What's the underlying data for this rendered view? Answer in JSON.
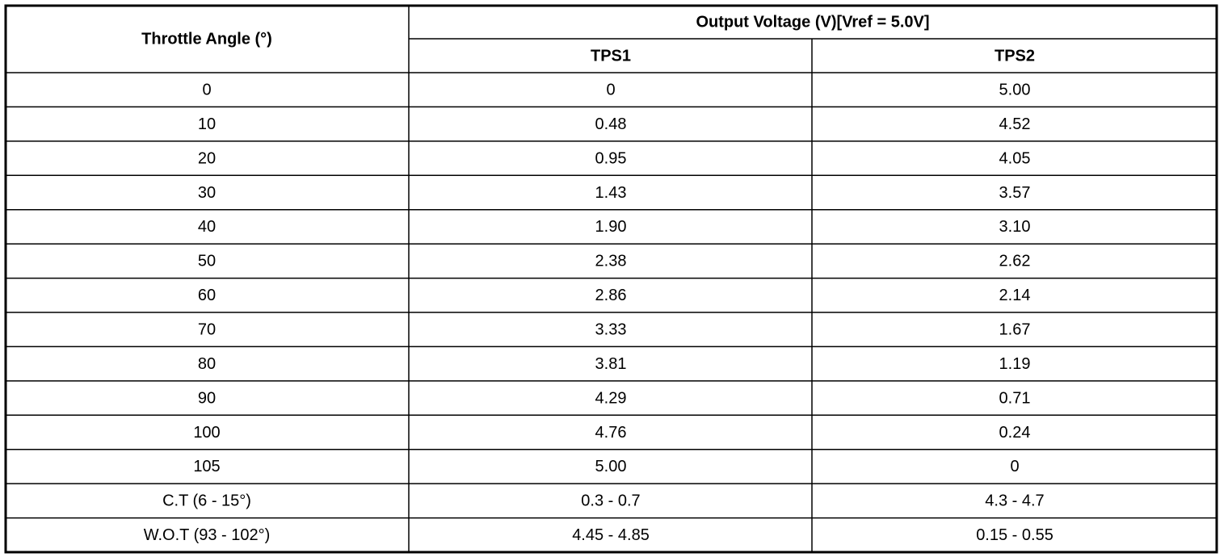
{
  "table": {
    "header": {
      "angle": "Throttle Angle (°)",
      "output": "Output Voltage (V)[Vref = 5.0V]",
      "tps1": "TPS1",
      "tps2": "TPS2"
    },
    "rows": [
      [
        "0",
        "0",
        "5.00"
      ],
      [
        "10",
        "0.48",
        "4.52"
      ],
      [
        "20",
        "0.95",
        "4.05"
      ],
      [
        "30",
        "1.43",
        "3.57"
      ],
      [
        "40",
        "1.90",
        "3.10"
      ],
      [
        "50",
        "2.38",
        "2.62"
      ],
      [
        "60",
        "2.86",
        "2.14"
      ],
      [
        "70",
        "3.33",
        "1.67"
      ],
      [
        "80",
        "3.81",
        "1.19"
      ],
      [
        "90",
        "4.29",
        "0.71"
      ],
      [
        "100",
        "4.76",
        "0.24"
      ],
      [
        "105",
        "5.00",
        "0"
      ],
      [
        "C.T (6 - 15°)",
        "0.3 - 0.7",
        "4.3 - 4.7"
      ],
      [
        "W.O.T (93 - 102°)",
        "4.45 - 4.85",
        "0.15 - 0.55"
      ]
    ]
  }
}
